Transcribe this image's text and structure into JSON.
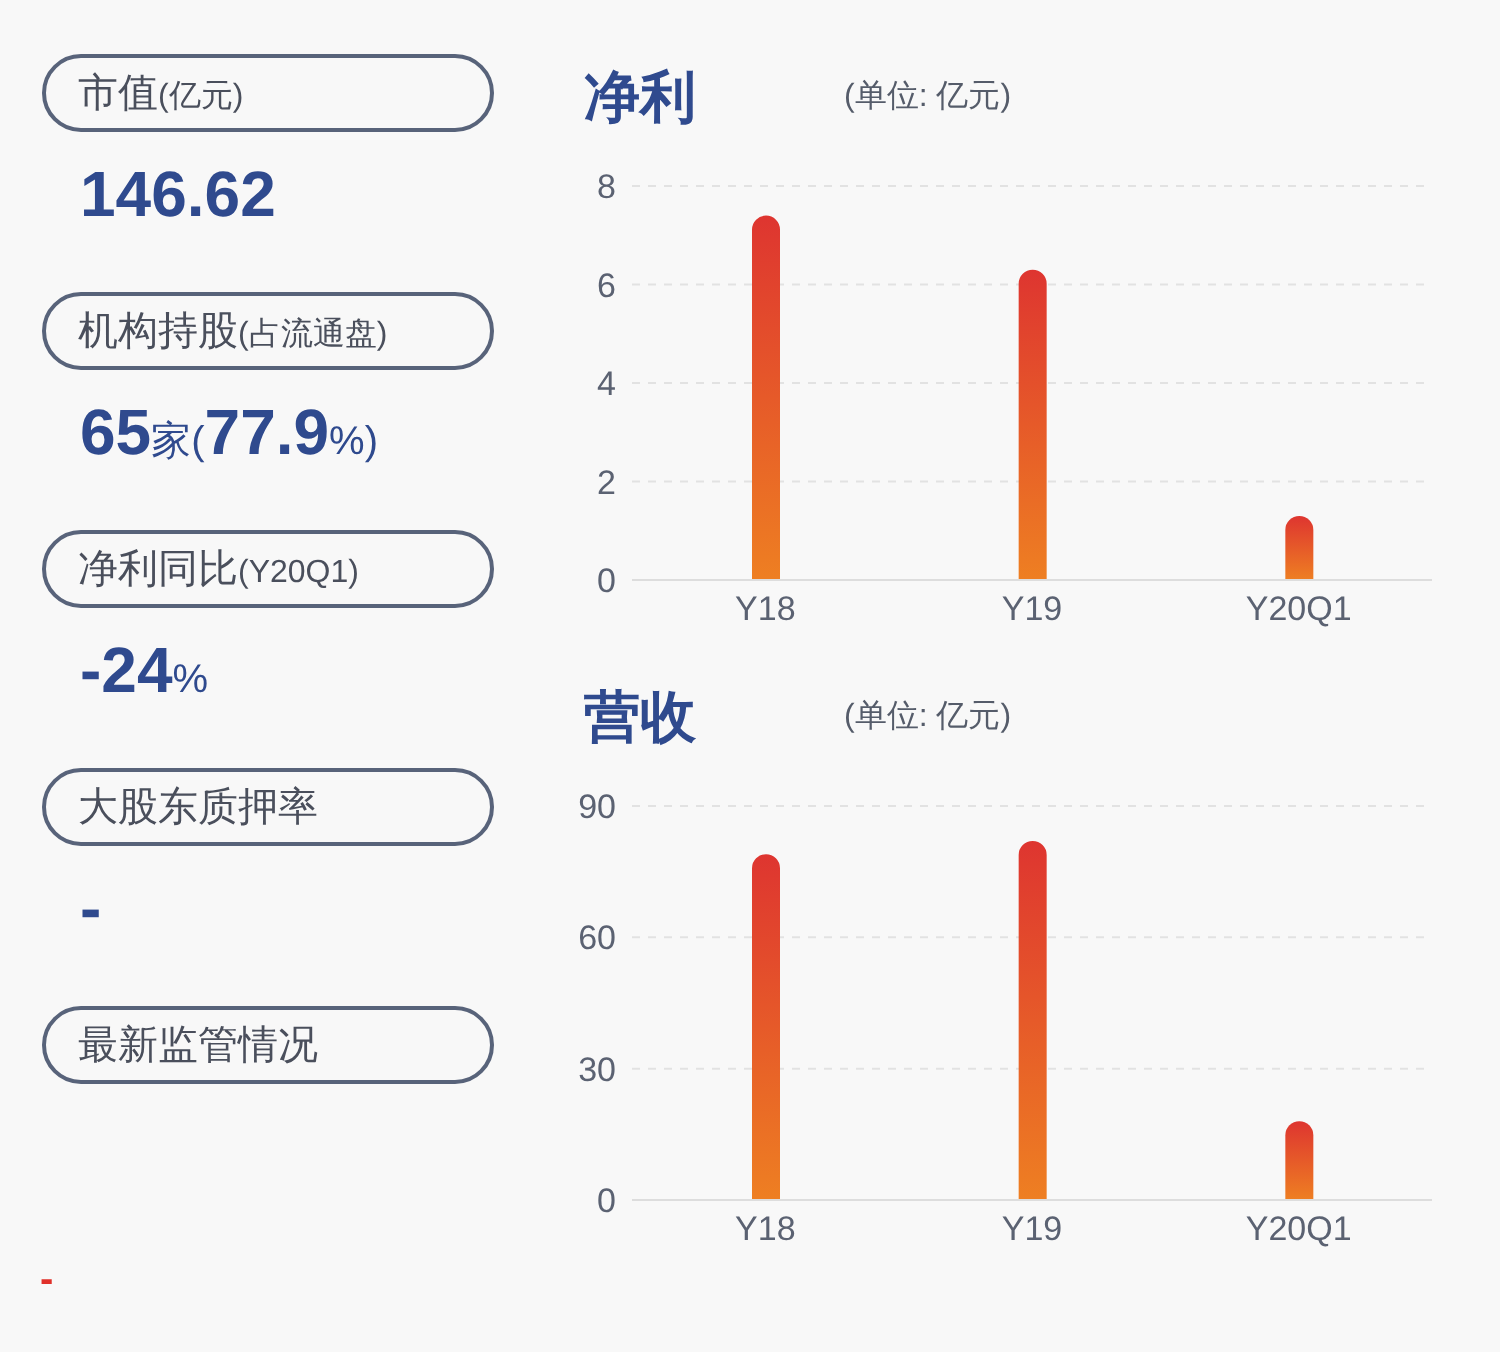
{
  "chart_data": [
    {
      "type": "other",
      "annotations": [
        "市值(亿元)",
        "146.62",
        "机构持股(占流通盘)",
        "65家(77.9%)",
        "净利同比(Y20Q1)",
        "-24%",
        "大股东质押率",
        "-",
        "最新监管情况",
        "-"
      ]
    },
    {
      "type": "bar",
      "title": "净利",
      "subtitle": "(单位: 亿元)",
      "categories": [
        "Y18",
        "Y19",
        "Y20Q1"
      ],
      "values": [
        7.4,
        6.3,
        1.3
      ],
      "color": "#de3530",
      "ylim": [
        0,
        8
      ],
      "yticks": [
        0,
        2,
        4,
        6,
        8
      ],
      "grid": "y"
    },
    {
      "type": "bar",
      "title": "营收",
      "subtitle": "(单位: 亿元)",
      "categories": [
        "Y18",
        "Y19",
        "Y20Q1"
      ],
      "values": [
        79,
        82,
        18
      ],
      "color": "#de3530",
      "ylim": [
        0,
        90
      ],
      "yticks": [
        0,
        30,
        60,
        90
      ],
      "grid": "y"
    }
  ]
}
